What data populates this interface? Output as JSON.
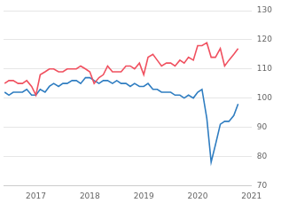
{
  "chart_data": {
    "type": "line",
    "x": [
      2016.42,
      2016.5,
      2016.58,
      2016.67,
      2016.75,
      2016.83,
      2016.92,
      2017.0,
      2017.08,
      2017.17,
      2017.25,
      2017.33,
      2017.42,
      2017.5,
      2017.58,
      2017.67,
      2017.75,
      2017.83,
      2017.92,
      2018.0,
      2018.08,
      2018.17,
      2018.25,
      2018.33,
      2018.42,
      2018.5,
      2018.58,
      2018.67,
      2018.75,
      2018.83,
      2018.92,
      2019.0,
      2019.08,
      2019.17,
      2019.25,
      2019.33,
      2019.42,
      2019.5,
      2019.58,
      2019.67,
      2019.75,
      2019.83,
      2019.92,
      2020.0,
      2020.08,
      2020.17,
      2020.25,
      2020.33,
      2020.42,
      2020.5,
      2020.58,
      2020.67,
      2020.75
    ],
    "series": [
      {
        "color": "#f0505f",
        "values": [
          105,
          106,
          106,
          105,
          105,
          106,
          104,
          101,
          108,
          109,
          110,
          110,
          109,
          109,
          110,
          110,
          110,
          111,
          110,
          109,
          105,
          107,
          108,
          111,
          109,
          109,
          109,
          111,
          111,
          110,
          112,
          108,
          114,
          115,
          113,
          111,
          112,
          112,
          111,
          113,
          112,
          114,
          113,
          118,
          118,
          119,
          114,
          114,
          117,
          111,
          113,
          115,
          117
        ]
      },
      {
        "color": "#2f7dc1",
        "values": [
          102,
          101,
          102,
          102,
          102,
          103,
          101,
          101,
          103,
          102,
          104,
          105,
          104,
          105,
          105,
          106,
          106,
          105,
          107,
          107,
          106,
          105,
          106,
          106,
          105,
          106,
          105,
          105,
          104,
          105,
          104,
          104,
          105,
          103,
          103,
          102,
          102,
          102,
          101,
          101,
          100,
          101,
          100,
          102,
          103,
          93,
          78,
          84,
          91,
          92,
          92,
          94,
          98
        ]
      }
    ],
    "xlim": [
      2016.4,
      2021
    ],
    "xticks": [
      2017,
      2018,
      2019,
      2020,
      2021
    ],
    "ylim": [
      70,
      130
    ],
    "yticks": [
      70,
      80,
      90,
      100,
      110,
      120,
      130
    ],
    "grid": true
  }
}
